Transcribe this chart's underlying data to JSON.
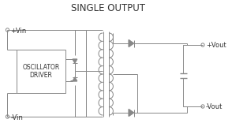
{
  "title": "SINGLE OUTPUT",
  "line_color": "#888888",
  "text_color": "#333333",
  "title_fontsize": 8.5,
  "label_fontsize": 6.0,
  "box_label1": "OSCILLATOR",
  "box_label2": "DRIVER",
  "plus_vin": "+Vin",
  "minus_vin": "-Vin",
  "plus_vout": "+Vout",
  "minus_vout": "-Vout"
}
